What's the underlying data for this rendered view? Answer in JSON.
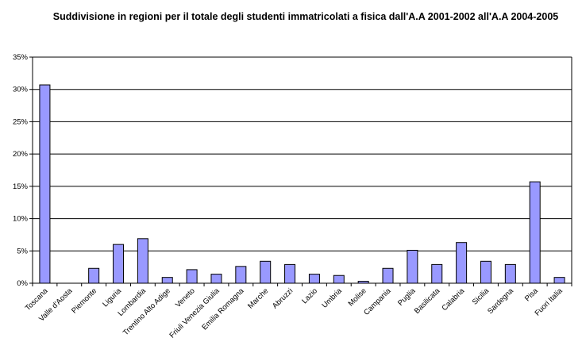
{
  "chart_data": {
    "type": "bar",
    "title": "Suddivisione in regioni per il totale degli studenti immatricolati a fisica dall'A.A 2001-2002 all'A.A 2004-2005",
    "xlabel": "",
    "ylabel": "",
    "categories": [
      "Toscana",
      "Valle d'Aosta",
      "Piemonte",
      "Liguria",
      "Lombardia",
      "Trentino Alto Adige",
      "Veneto",
      "Friuli Venezia Giulia",
      "Emilia Romagna",
      "Marche",
      "Abruzzi",
      "Lazio",
      "Umbria",
      "Molise",
      "Campania",
      "Puglia",
      "Basilicata",
      "Calabria",
      "Sicilia",
      "Sardegna",
      "Pisa",
      "Fuori Italia"
    ],
    "values": [
      30.7,
      0.0,
      2.3,
      6.0,
      6.9,
      0.9,
      2.1,
      1.4,
      2.6,
      3.4,
      2.9,
      1.4,
      1.2,
      0.3,
      2.3,
      5.1,
      2.9,
      6.3,
      3.4,
      2.9,
      15.7,
      0.9
    ],
    "ylim": [
      0,
      35
    ],
    "yticks": [
      "0%",
      "5%",
      "10%",
      "15%",
      "20%",
      "25%",
      "30%",
      "35%"
    ],
    "grid": true,
    "legend": "none",
    "colors": {
      "bar_fill": "#9999ff",
      "bar_stroke": "#000000",
      "grid": "#000000"
    }
  }
}
